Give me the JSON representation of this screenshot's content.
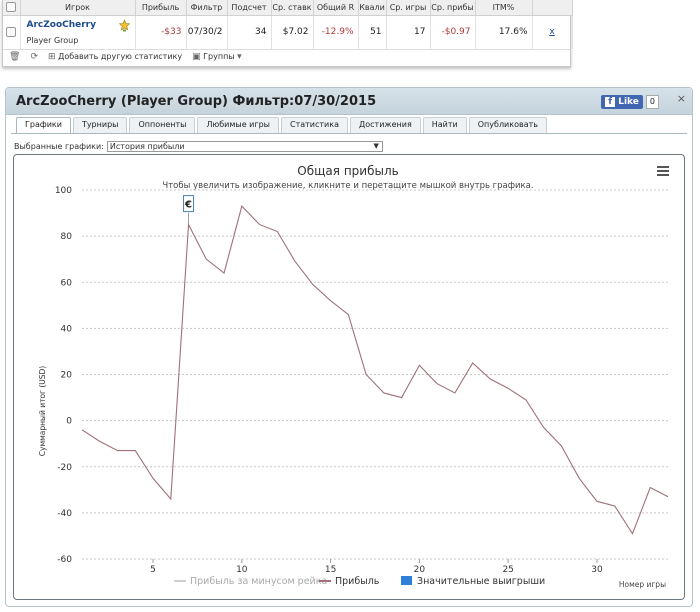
{
  "stats_table": {
    "headers": [
      "",
      "Игрок",
      "Прибыль",
      "Фильтр",
      "Подсчет",
      "Ср. ставк",
      "Общий R",
      "Квали",
      "Ср. игры",
      "Ср. прибы",
      "ITM%",
      ""
    ],
    "row": {
      "player": "ArcZooCherry",
      "group": "Player Group",
      "profit": "-$33",
      "filter": "07/30/2",
      "count": "34",
      "avg_stake": "$7.02",
      "roi": "-12.9%",
      "qual": "51",
      "avg_games": "17",
      "avg_profit": "-$0.97",
      "itm": "17.6%",
      "remove": "x"
    },
    "toolbar": {
      "add_stat": "Добавить другую статистику",
      "groups": "Группы"
    }
  },
  "panel": {
    "title": "ArcZooCherry (Player Group) Фильтр:07/30/2015",
    "like_label": "Like",
    "like_count": "0",
    "close": "×",
    "tabs": [
      "Графики",
      "Турниры",
      "Оппоненты",
      "Любимые игры",
      "Статистика",
      "Достижения",
      "Найти",
      "Опубликовать"
    ],
    "select_label": "Выбранные графики:",
    "select_value": "История прибыли"
  },
  "chart_data": {
    "type": "line",
    "title": "Общая прибыль",
    "subtitle": "Чтобы увеличить изображение, кликните и перетащите мышкой внутрь графика.",
    "ylabel": "Суммарный итог (USD)",
    "xlabel": "Номер игры",
    "ylim": [
      -60,
      100
    ],
    "yticks": [
      100,
      80,
      60,
      40,
      20,
      0,
      -20,
      -40,
      -60
    ],
    "xlim": [
      1,
      34
    ],
    "xticks": [
      5,
      10,
      15,
      20,
      25,
      30
    ],
    "grid": true,
    "series": [
      {
        "name": "Прибыль",
        "color": "#a07078",
        "x": [
          1,
          2,
          3,
          4,
          5,
          6,
          7,
          8,
          9,
          10,
          11,
          12,
          13,
          14,
          15,
          16,
          17,
          18,
          19,
          20,
          21,
          22,
          23,
          24,
          25,
          26,
          27,
          28,
          29,
          30,
          31,
          32,
          33,
          34
        ],
        "values": [
          -4,
          -9,
          -13,
          -13,
          -25,
          -34,
          85,
          70,
          64,
          93,
          85,
          82,
          69,
          59,
          52,
          46,
          20,
          12,
          10,
          24,
          16,
          12,
          25,
          18,
          14,
          9,
          -3,
          -11,
          -25,
          -35,
          -37,
          -49,
          -29,
          -33
        ]
      }
    ],
    "marker": {
      "x": 7,
      "label": "€"
    },
    "legend": [
      {
        "name": "Прибыль за минусом рейка",
        "color": "#cfcfcf"
      },
      {
        "name": "Прибыль",
        "color": "#a07078"
      },
      {
        "name": "Значительные выигрыши",
        "color": "#2f7ed8"
      }
    ],
    "legend_position": "bottom"
  }
}
